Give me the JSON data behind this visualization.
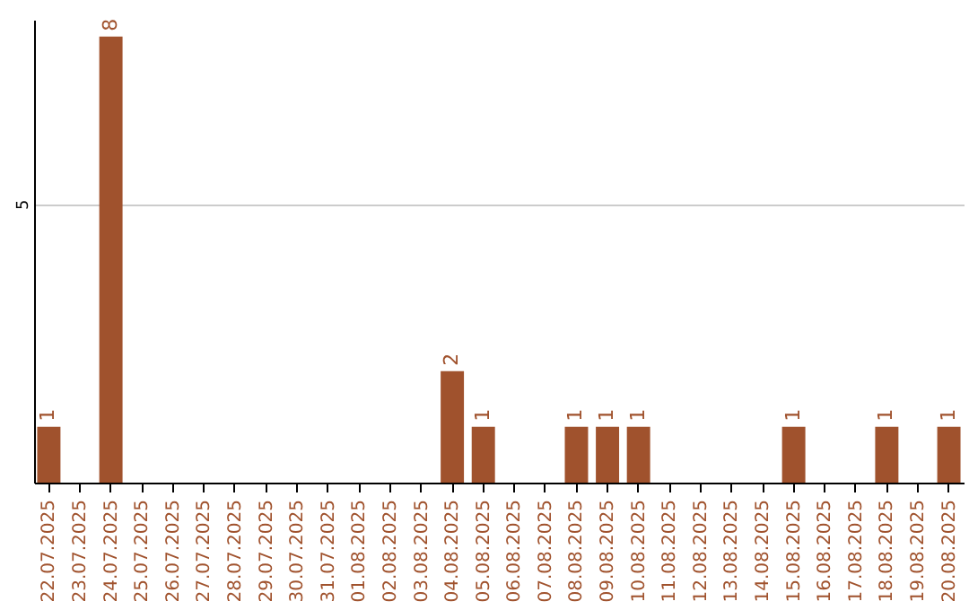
{
  "chart_data": {
    "type": "bar",
    "categories": [
      "22.07.2025",
      "23.07.2025",
      "24.07.2025",
      "25.07.2025",
      "26.07.2025",
      "27.07.2025",
      "28.07.2025",
      "29.07.2025",
      "30.07.2025",
      "31.07.2025",
      "01.08.2025",
      "02.08.2025",
      "03.08.2025",
      "04.08.2025",
      "05.08.2025",
      "06.08.2025",
      "07.08.2025",
      "08.08.2025",
      "09.08.2025",
      "10.08.2025",
      "11.08.2025",
      "12.08.2025",
      "13.08.2025",
      "14.08.2025",
      "15.08.2025",
      "16.08.2025",
      "17.08.2025",
      "18.08.2025",
      "19.08.2025",
      "20.08.2025"
    ],
    "values": [
      1,
      null,
      8,
      null,
      null,
      null,
      null,
      null,
      null,
      null,
      null,
      null,
      null,
      2,
      1,
      null,
      null,
      1,
      1,
      1,
      null,
      null,
      null,
      null,
      1,
      null,
      null,
      1,
      null,
      1
    ],
    "color": "#a0522d",
    "ylim": [
      0,
      8.3
    ],
    "yticks": [
      5
    ],
    "grid": "y",
    "data_labels": true
  }
}
